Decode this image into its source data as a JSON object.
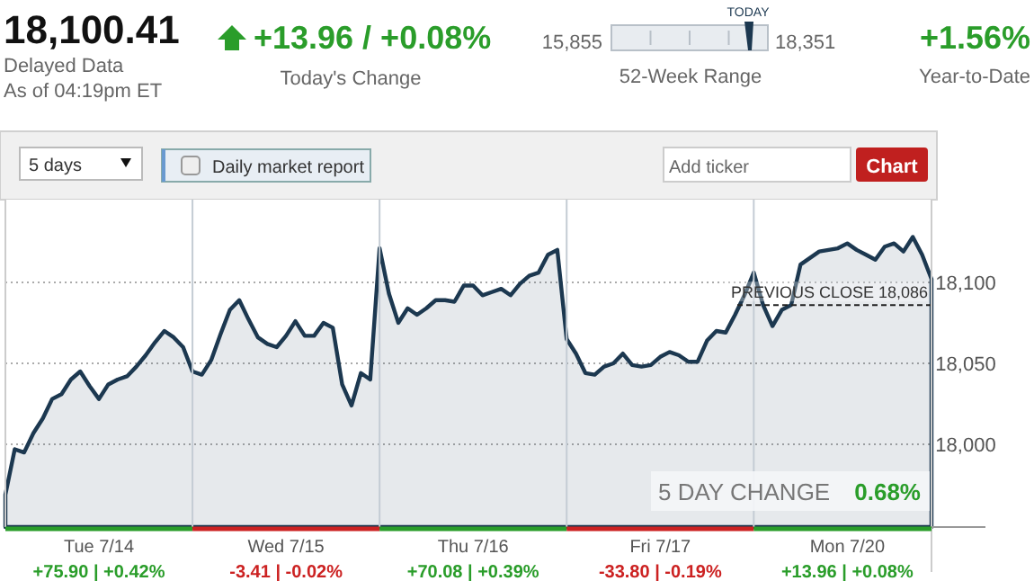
{
  "chart_data": {
    "type": "area",
    "title": "18,100.41",
    "categories": [
      null,
      null,
      null,
      null,
      null,
      null,
      null,
      null,
      null,
      null,
      "Tue 7/14",
      null,
      null,
      null,
      null,
      null,
      null,
      null,
      null,
      null,
      null,
      null,
      null,
      null,
      null,
      null,
      null,
      null,
      null,
      null,
      "Wed 7/15",
      null,
      null,
      null,
      null,
      null,
      null,
      null,
      null,
      null,
      null,
      null,
      null,
      null,
      null,
      null,
      null,
      null,
      null,
      null,
      "Thu 7/16",
      null,
      null,
      null,
      null,
      null,
      null,
      null,
      null,
      null,
      null,
      null,
      null,
      null,
      null,
      null,
      null,
      null,
      null,
      null,
      "Fri 7/17",
      null,
      null,
      null,
      null,
      null,
      null,
      null,
      null,
      null,
      null,
      null,
      null,
      null,
      null,
      null,
      null,
      null,
      null,
      null,
      "Mon 7/20",
      null,
      null,
      null,
      null,
      null,
      null,
      null,
      null,
      null
    ],
    "series": [
      {
        "color": "#1c3850",
        "values": [
          17969,
          17997,
          17995,
          18007,
          18016,
          18028,
          18031,
          18040,
          18045,
          18036,
          18028,
          18037,
          18040,
          18042,
          18048,
          18055,
          18063,
          18070,
          18066,
          18060,
          18045,
          18043,
          18052,
          18068,
          18083,
          18089,
          18077,
          18066,
          18062,
          18060,
          18067,
          18076,
          18067,
          18067,
          18075,
          18072,
          18037,
          18024,
          18044,
          18040,
          18121,
          18093,
          18075,
          18084,
          18080,
          18084,
          18089,
          18089,
          18088,
          18098,
          18098,
          18092,
          18094,
          18096,
          18092,
          18099,
          18104,
          18106,
          18117,
          18120,
          18065,
          18056,
          18044,
          18043,
          18048,
          18050,
          18056,
          18049,
          18048,
          18049,
          18054,
          18057,
          18055,
          18051,
          18051,
          18064,
          18070,
          18069,
          18080,
          18092,
          18106,
          18086,
          18073,
          18083,
          18086,
          18111,
          18115,
          18119,
          18120,
          18121,
          18124,
          18120,
          18117,
          18114,
          18122,
          18124,
          18119,
          18128,
          18117,
          18102
        ]
      }
    ],
    "ylim": [
      17949,
      18151
    ],
    "yticks": [
      {
        "value": 18000,
        "label": "18,000"
      },
      {
        "value": 18050,
        "label": "18,050"
      },
      {
        "value": 18100,
        "label": "18,100"
      }
    ],
    "grid": true,
    "ref_lines": [
      {
        "axis": "y",
        "value": 18086,
        "label": "PREVIOUS CLOSE 18,086",
        "line_style": "dashed"
      }
    ],
    "annotations": [
      "Delayed Data",
      "As of 04:19pm ET",
      "+13.96 / +0.08%",
      "Today's Change",
      "15,855",
      "18,351",
      "TODAY",
      "52-Week Range",
      "+1.56%",
      "Year-to-Date",
      "5 days",
      "Daily market report",
      "Add ticker",
      "Chart",
      "5 DAY CHANGE",
      "0.68%",
      "+75.90 | +0.42%",
      "-3.41 | -0.02%",
      "+70.08 | +0.39%",
      "-33.80 | -0.19%",
      "+13.96 | +0.08%"
    ]
  }
}
